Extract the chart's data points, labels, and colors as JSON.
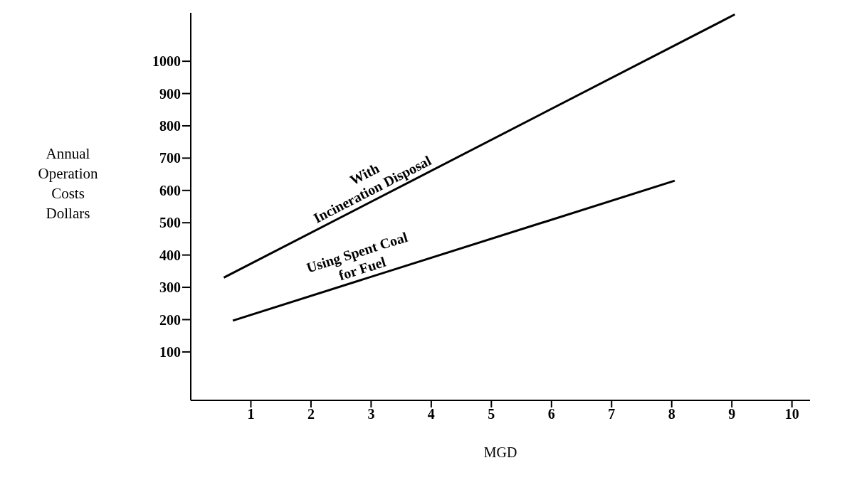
{
  "chart_data": {
    "type": "line",
    "xlabel": "MGD",
    "ylabel": "Annual\nOperation\nCosts\nDollars",
    "series": [
      {
        "name": "With\nIncineration Disposal",
        "color": "#000000",
        "x": [
          0.55,
          9.05
        ],
        "values": [
          330,
          1145
        ]
      },
      {
        "name": "Using Spent Coal\nfor Fuel",
        "color": "#000000",
        "x": [
          0.7,
          8.05
        ],
        "values": [
          197,
          630
        ]
      }
    ],
    "xlim": [
      0,
      10.3
    ],
    "xticks": [
      1,
      2,
      3,
      4,
      5,
      6,
      7,
      8,
      9,
      10
    ],
    "ylim": [
      -50,
      1150
    ],
    "yticks": [
      100,
      200,
      300,
      400,
      500,
      600,
      700,
      800,
      900,
      1000
    ],
    "marker": "none",
    "line_style": "solid"
  }
}
